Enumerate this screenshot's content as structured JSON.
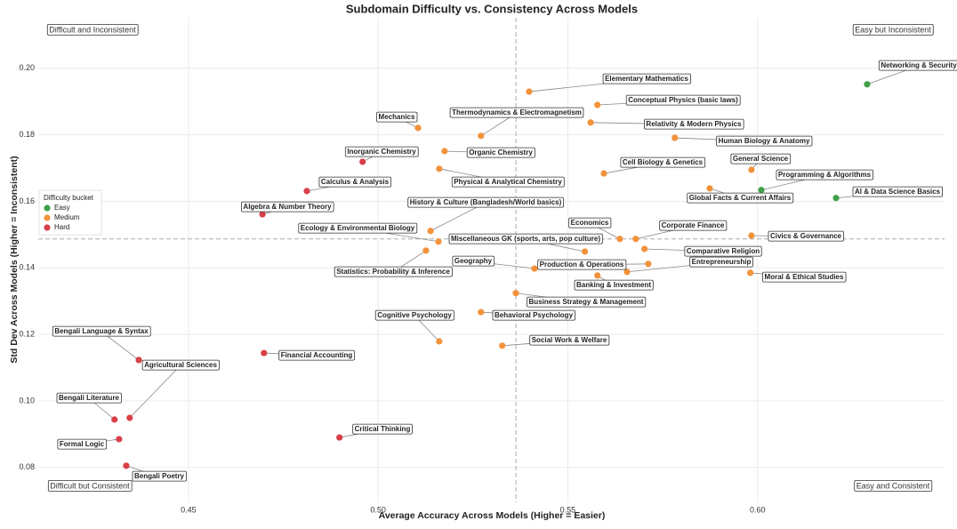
{
  "chart_data": {
    "type": "scatter",
    "title": "Subdomain Difficulty vs. Consistency Across Models",
    "x_label": "Average Accuracy Across Models (Higher = Easier)",
    "y_label": "Std Dev Across Models (Higher = Inconsistent)",
    "xlim": [
      0.4104,
      0.6493
    ],
    "ylim": [
      0.0695,
      0.2152
    ],
    "xticks": [
      0.45,
      {
        "value": 0.5,
        "label": "0.50"
      },
      0.55,
      {
        "value": 0.6,
        "label": "0.60"
      }
    ],
    "yticks": [
      0.08,
      {
        "value": 0.1,
        "label": "0.10"
      },
      0.12,
      0.14,
      0.16,
      0.18,
      {
        "value": 0.2,
        "label": "0.20"
      }
    ],
    "grid": true,
    "vline": 0.5363,
    "hline": 0.1487,
    "legend_title": "Difficulty bucket",
    "legend_position": "left",
    "annotations": [
      "Difficult and Inconsistent",
      "Easy but Inconsistent",
      "Difficult but Consistent",
      "Easy and Consistent"
    ],
    "series": [
      {
        "name": "Easy",
        "color": "#3fa048",
        "labels": [
          "Networking & Security",
          "Programming & Algorithms",
          "AI & Data Science Basics"
        ],
        "x": [
          0.6289,
          0.601,
          0.6207
        ],
        "values": [
          0.1952,
          0.1634,
          0.161
        ]
      },
      {
        "name": "Medium",
        "color": "#f2923a",
        "labels": [
          "Elementary Mathematics",
          "Conceptual Physics (basic laws)",
          "Mechanics",
          "Thermodynamics & Electromagnetism",
          "Relativity & Modern Physics",
          "Human Biology & Anatomy",
          "Organic Chemistry",
          "Physical & Analytical Chemistry",
          "Cell Biology & Genetics",
          "General Science",
          "Global Facts & Current Affairs",
          "History & Culture (Bangladesh/World basics)",
          "Ecology & Environmental Biology",
          "Miscellaneous GK (sports, arts, pop culture)",
          "Economics",
          "Corporate Finance",
          "Civics & Governance",
          "Comparative Religion",
          "Statistics: Probability & Inference",
          "Geography",
          "Production & Operations",
          "Entrepreneurship",
          "Banking & Investment",
          "Moral & Ethical Studies",
          "Business Strategy & Management",
          "Behavioral Psychology",
          "Cognitive Psychology",
          "Social Work & Welfare"
        ],
        "x": [
          0.5398,
          0.5578,
          0.5105,
          0.5271,
          0.556,
          0.5782,
          0.5175,
          0.5161,
          0.5595,
          0.5984,
          0.5874,
          0.5138,
          0.5159,
          0.5545,
          0.5637,
          0.5679,
          0.5984,
          0.5702,
          0.5126,
          0.5412,
          0.5712,
          0.5656,
          0.5578,
          0.5981,
          0.5363,
          0.5271,
          0.5161,
          0.5327
        ],
        "values": [
          0.193,
          0.189,
          0.1821,
          0.1797,
          0.1837,
          0.1791,
          0.1751,
          0.1698,
          0.1684,
          0.1695,
          0.1639,
          0.1511,
          0.1479,
          0.1449,
          0.1487,
          0.1487,
          0.1497,
          0.1457,
          0.1452,
          0.1398,
          0.1412,
          0.1388,
          0.1377,
          0.1385,
          0.1324,
          0.1267,
          0.1179,
          0.1166
        ]
      },
      {
        "name": "Hard",
        "color": "#d8404a",
        "labels": [
          "Inorganic Chemistry",
          "Calculus & Analysis",
          "Algebra & Number Theory",
          "Bengali Language & Syntax",
          "Financial Accounting",
          "Agricultural Sciences",
          "Bengali Literature",
          "Critical Thinking",
          "Formal Logic",
          "Bengali Poetry"
        ],
        "x": [
          0.4959,
          0.4812,
          0.4695,
          0.4369,
          0.4699,
          0.4345,
          0.4305,
          0.4898,
          0.4317,
          0.4336
        ],
        "values": [
          0.1719,
          0.1631,
          0.1561,
          0.1123,
          0.1144,
          0.0949,
          0.0944,
          0.089,
          0.0885,
          0.0805
        ]
      }
    ]
  }
}
